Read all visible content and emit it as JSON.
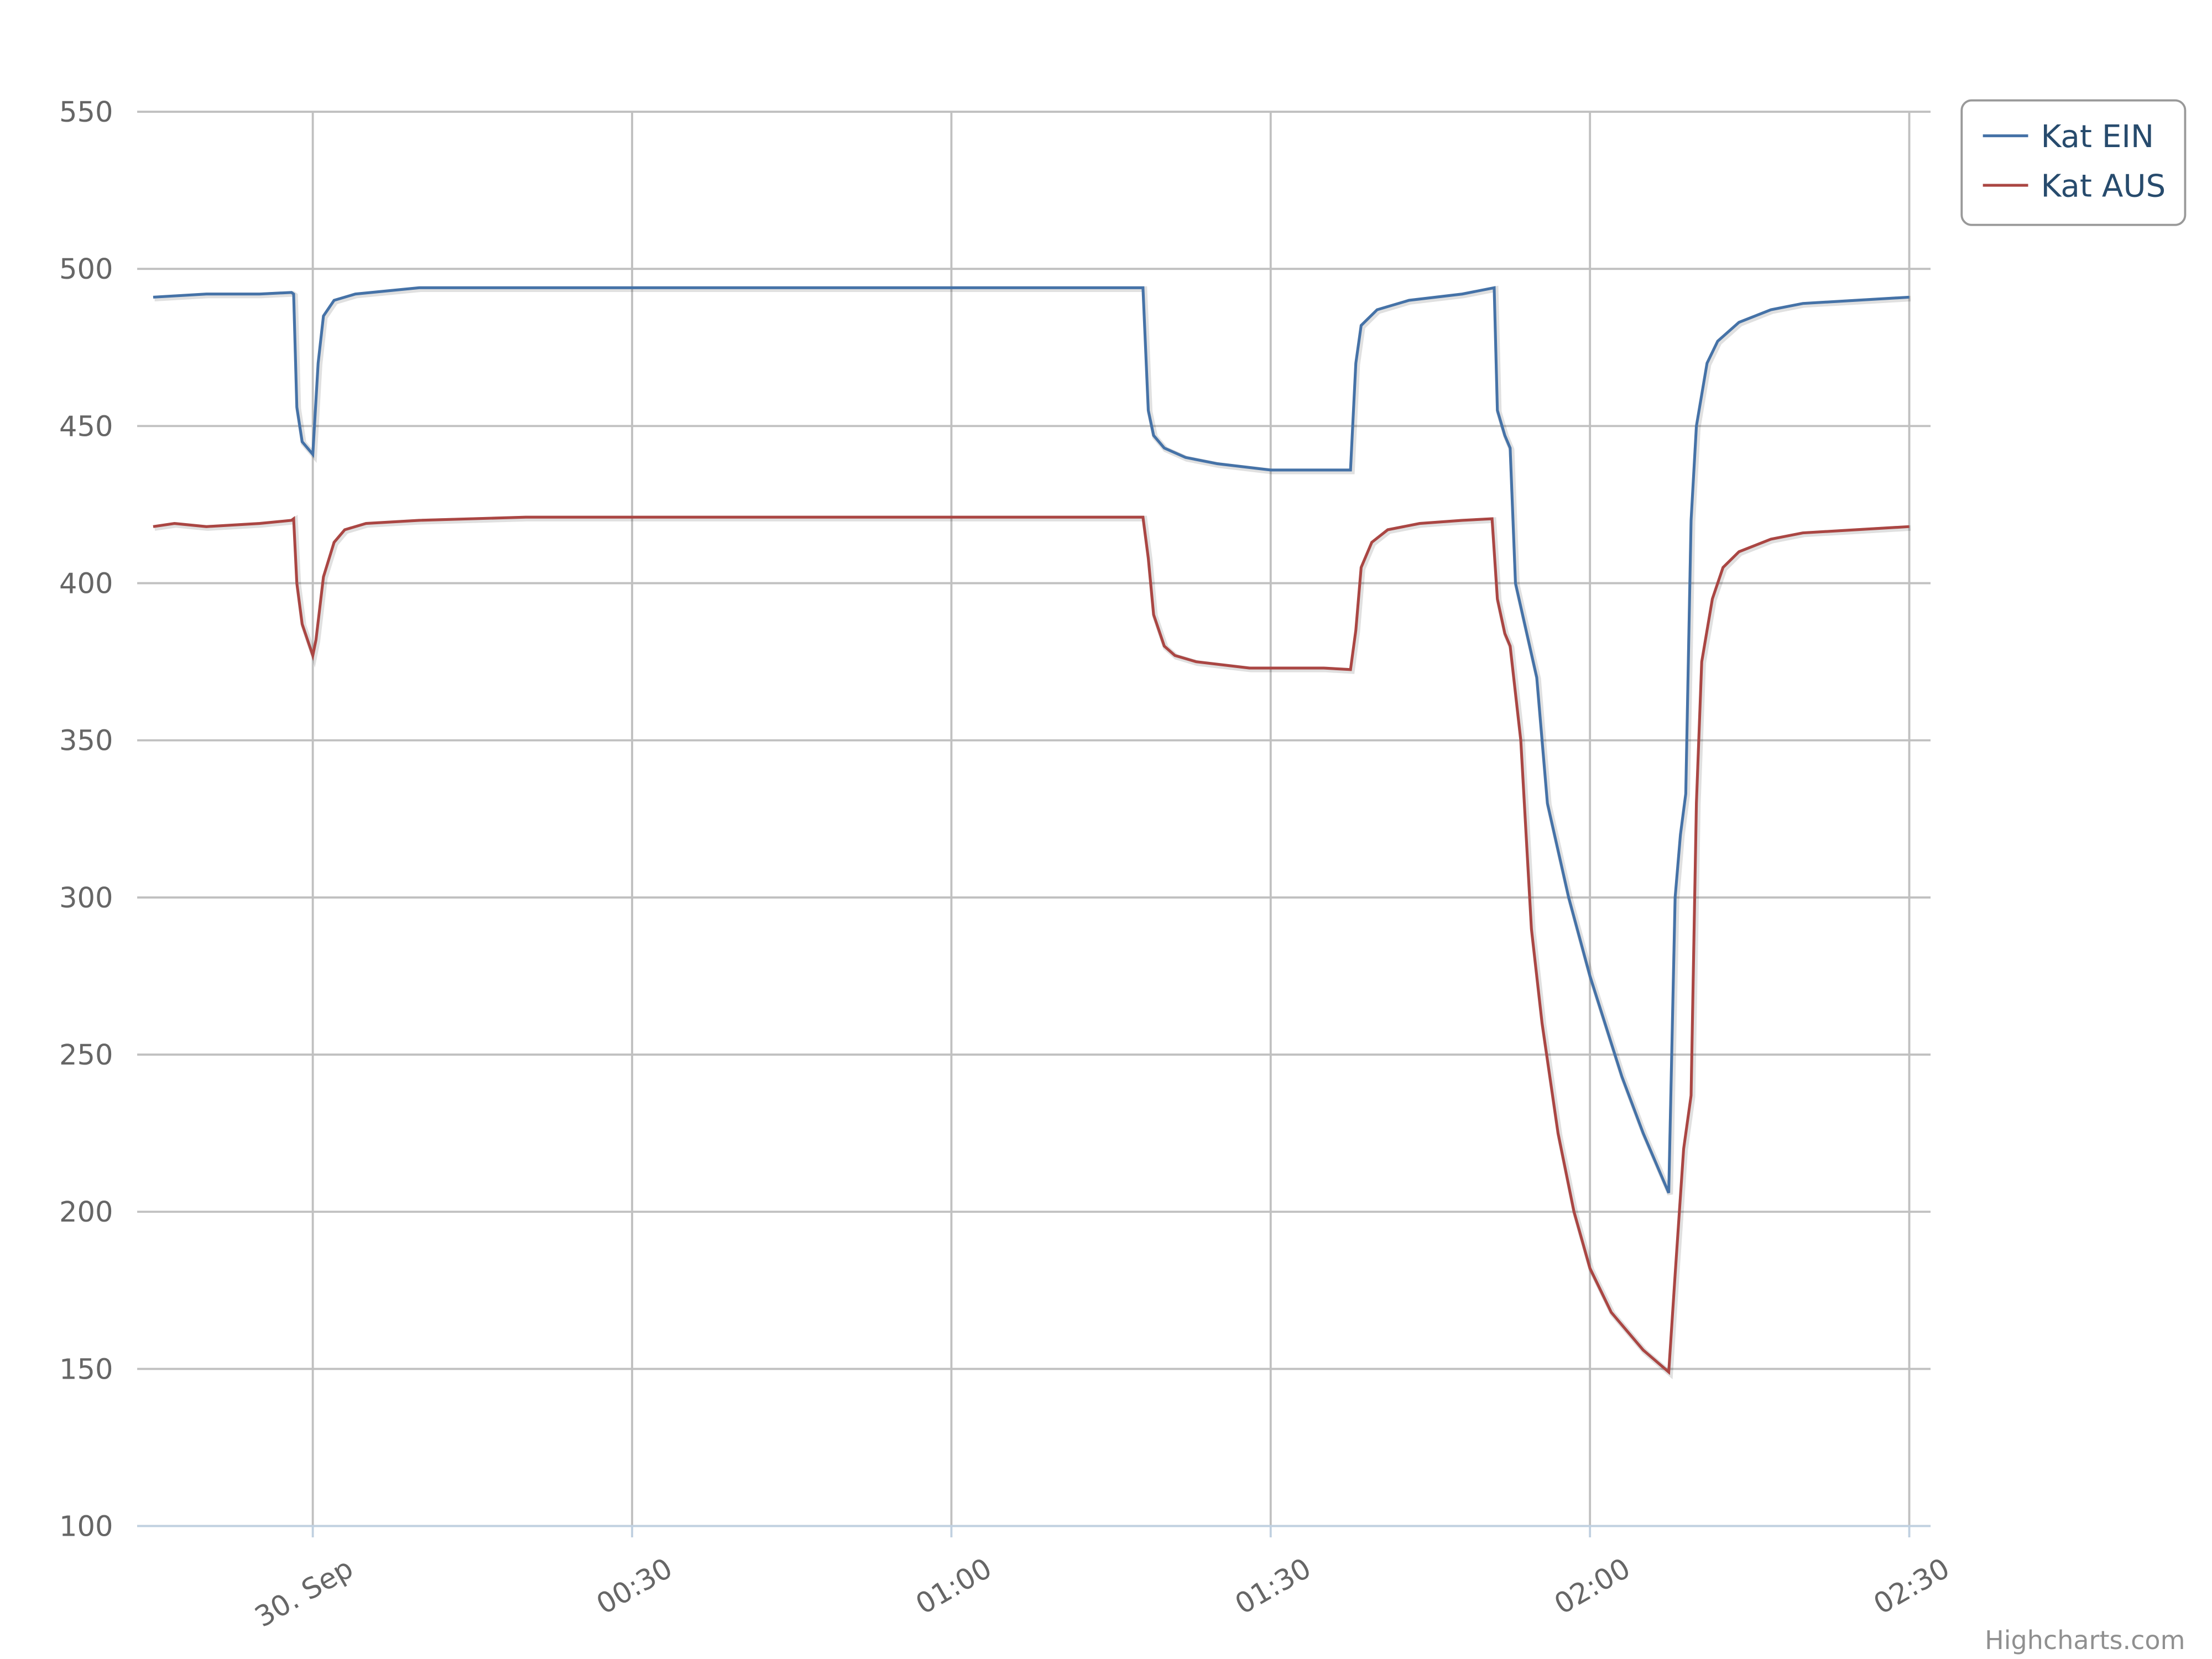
{
  "chart_data": {
    "type": "line",
    "series": [
      {
        "name": "Kat EIN",
        "color": "#4572a7",
        "x": [
          -15,
          -10,
          -5,
          -2,
          -1.8,
          -1.5,
          -1,
          0,
          0.5,
          1,
          2,
          4,
          10,
          20,
          40,
          60,
          70,
          78,
          78.5,
          79,
          80,
          82,
          85,
          90,
          95,
          97.5,
          98,
          98.5,
          100,
          103,
          108,
          111,
          111.3,
          112,
          112.5,
          113,
          115,
          116,
          118,
          120,
          123,
          125,
          127.4,
          128,
          128.5,
          129,
          129.5,
          130,
          131,
          132,
          134,
          137,
          140,
          145,
          150
        ],
        "values": [
          491,
          492,
          492,
          492.5,
          492,
          456,
          445,
          441,
          470,
          485,
          490,
          492,
          494,
          494,
          494,
          494,
          494,
          494,
          455,
          447,
          443,
          440,
          438,
          436,
          436,
          436,
          470,
          482,
          487,
          490,
          492,
          494,
          455,
          447,
          443,
          400,
          370,
          330,
          300,
          275,
          243,
          225,
          206,
          300,
          320,
          333,
          420,
          450,
          470,
          477,
          483,
          487,
          489,
          490,
          491
        ]
      },
      {
        "name": "Kat AUS",
        "color": "#aa4643",
        "x": [
          -15,
          -13,
          -10,
          -5,
          -2,
          -1.8,
          -1.5,
          -1,
          -0.3,
          0,
          0.3,
          1,
          2,
          3,
          5,
          10,
          20,
          40,
          60,
          78,
          78.5,
          79,
          80,
          81,
          83,
          88,
          95,
          97.5,
          98,
          98.5,
          99.5,
          101,
          104,
          108,
          110.8,
          111.3,
          112,
          112.5,
          113.5,
          114.5,
          115.5,
          117,
          118.5,
          120,
          122,
          125,
          127.4,
          128,
          128.8,
          129.5,
          130,
          130.5,
          131.5,
          132.5,
          134,
          137,
          140,
          145,
          150
        ],
        "values": [
          418,
          419,
          418,
          419,
          420,
          420.5,
          400,
          387,
          380,
          377,
          382,
          402,
          413,
          417,
          419,
          420,
          421,
          421,
          421,
          421,
          408,
          390,
          380,
          377,
          375,
          373,
          373,
          372.5,
          385,
          405,
          413,
          417,
          419,
          420,
          420.5,
          395,
          384,
          380,
          350,
          290,
          260,
          225,
          200,
          182,
          168,
          156,
          149,
          180,
          220,
          237,
          330,
          375,
          395,
          405,
          410,
          414,
          416,
          417,
          418
        ]
      }
    ],
    "xlim": [
      -16.5,
      152
    ],
    "xticks": [
      {
        "value": 0,
        "label": "30. Sep"
      },
      {
        "value": 30,
        "label": "00:30"
      },
      {
        "value": 60,
        "label": "01:00"
      },
      {
        "value": 90,
        "label": "01:30"
      },
      {
        "value": 120,
        "label": "02:00"
      },
      {
        "value": 150,
        "label": "02:30"
      }
    ],
    "ylim": [
      100,
      550
    ],
    "yticks": [
      100,
      150,
      200,
      250,
      300,
      350,
      400,
      450,
      500,
      550
    ],
    "grid": true,
    "legend": "top-right",
    "credits": "Highcharts.com"
  }
}
